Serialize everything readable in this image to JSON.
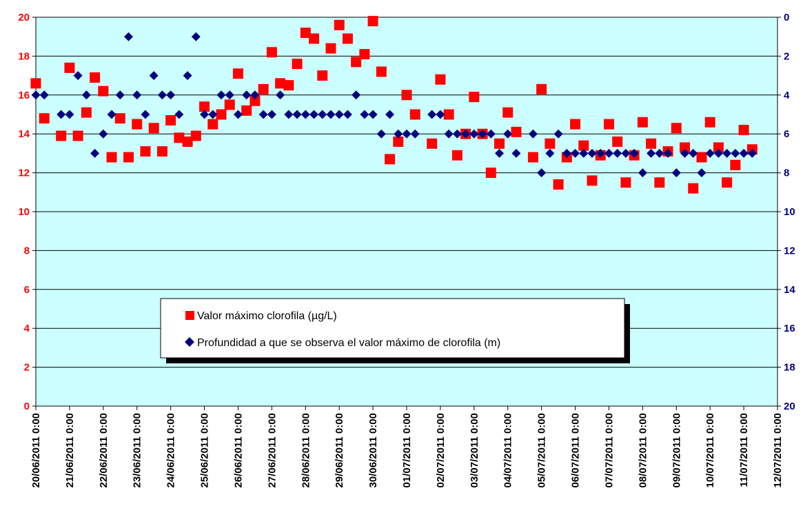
{
  "chart_data": {
    "type": "scatter",
    "title": "",
    "x_axis": {
      "type": "date",
      "min": "2011-06-20 00:00",
      "max": "2011-07-12 00:00",
      "tick_labels": [
        "20/06/2011 0:00",
        "21/06/2011 0:00",
        "22/06/2011 0:00",
        "23/06/2011 0:00",
        "24/06/2011 0:00",
        "25/06/2011 0:00",
        "26/06/2011 0:00",
        "27/06/2011 0:00",
        "28/06/2011 0:00",
        "29/06/2011 0:00",
        "30/06/2011 0:00",
        "01/07/2011 0:00",
        "02/07/2011 0:00",
        "03/07/2011 0:00",
        "04/07/2011 0:00",
        "05/07/2011 0:00",
        "06/07/2011 0:00",
        "07/07/2011 0:00",
        "08/07/2011 0:00",
        "09/07/2011 0:00",
        "10/07/2011 0:00",
        "11/07/2011 0:00",
        "12/07/2011 0:00"
      ]
    },
    "y_axis_left": {
      "min": 0,
      "max": 20,
      "tick_labels": [
        "0",
        "2",
        "4",
        "6",
        "8",
        "10",
        "12",
        "14",
        "16",
        "18",
        "20"
      ],
      "color": "#ff0000"
    },
    "y_axis_right": {
      "min": 0,
      "max": 20,
      "reversed": true,
      "tick_labels": [
        "0",
        "2",
        "4",
        "6",
        "8",
        "10",
        "12",
        "14",
        "16",
        "18",
        "20"
      ],
      "color": "#00007f"
    },
    "grid": "horizontal",
    "plot_background": "#ccffff",
    "legend": {
      "position": "bottom-center",
      "entries": [
        "Valor máximo clorofila (µg/L)",
        "Profundidad a que se observa el valor máximo de clorofila (m)"
      ]
    },
    "series": [
      {
        "name": "Valor máximo clorofila (µg/L)",
        "axis": "left",
        "marker": "square",
        "color": "#ff0000",
        "points": [
          {
            "x": "2011-06-20 00:00",
            "y": 16.6
          },
          {
            "x": "2011-06-20 06:00",
            "y": 14.8
          },
          {
            "x": "2011-06-20 18:00",
            "y": 13.9
          },
          {
            "x": "2011-06-21 00:00",
            "y": 17.4
          },
          {
            "x": "2011-06-21 06:00",
            "y": 13.9
          },
          {
            "x": "2011-06-21 12:00",
            "y": 15.1
          },
          {
            "x": "2011-06-21 18:00",
            "y": 16.9
          },
          {
            "x": "2011-06-22 00:00",
            "y": 16.2
          },
          {
            "x": "2011-06-22 06:00",
            "y": 12.8
          },
          {
            "x": "2011-06-22 12:00",
            "y": 14.8
          },
          {
            "x": "2011-06-22 18:00",
            "y": 12.8
          },
          {
            "x": "2011-06-23 00:00",
            "y": 14.5
          },
          {
            "x": "2011-06-23 06:00",
            "y": 13.1
          },
          {
            "x": "2011-06-23 12:00",
            "y": 14.3
          },
          {
            "x": "2011-06-23 18:00",
            "y": 13.1
          },
          {
            "x": "2011-06-24 00:00",
            "y": 14.7
          },
          {
            "x": "2011-06-24 06:00",
            "y": 13.8
          },
          {
            "x": "2011-06-24 12:00",
            "y": 13.6
          },
          {
            "x": "2011-06-24 18:00",
            "y": 13.9
          },
          {
            "x": "2011-06-25 00:00",
            "y": 15.4
          },
          {
            "x": "2011-06-25 06:00",
            "y": 14.5
          },
          {
            "x": "2011-06-25 12:00",
            "y": 15.0
          },
          {
            "x": "2011-06-25 18:00",
            "y": 15.5
          },
          {
            "x": "2011-06-26 00:00",
            "y": 17.1
          },
          {
            "x": "2011-06-26 06:00",
            "y": 15.2
          },
          {
            "x": "2011-06-26 12:00",
            "y": 15.7
          },
          {
            "x": "2011-06-26 18:00",
            "y": 16.3
          },
          {
            "x": "2011-06-27 00:00",
            "y": 18.2
          },
          {
            "x": "2011-06-27 06:00",
            "y": 16.6
          },
          {
            "x": "2011-06-27 12:00",
            "y": 16.5
          },
          {
            "x": "2011-06-27 18:00",
            "y": 17.6
          },
          {
            "x": "2011-06-28 00:00",
            "y": 19.2
          },
          {
            "x": "2011-06-28 06:00",
            "y": 18.9
          },
          {
            "x": "2011-06-28 12:00",
            "y": 17.0
          },
          {
            "x": "2011-06-28 18:00",
            "y": 18.4
          },
          {
            "x": "2011-06-29 00:00",
            "y": 19.6
          },
          {
            "x": "2011-06-29 06:00",
            "y": 18.9
          },
          {
            "x": "2011-06-29 12:00",
            "y": 17.7
          },
          {
            "x": "2011-06-29 18:00",
            "y": 18.1
          },
          {
            "x": "2011-06-30 00:00",
            "y": 19.8
          },
          {
            "x": "2011-06-30 06:00",
            "y": 17.2
          },
          {
            "x": "2011-06-30 12:00",
            "y": 12.7
          },
          {
            "x": "2011-06-30 18:00",
            "y": 13.6
          },
          {
            "x": "2011-07-01 00:00",
            "y": 16.0
          },
          {
            "x": "2011-07-01 06:00",
            "y": 15.0
          },
          {
            "x": "2011-07-01 18:00",
            "y": 13.5
          },
          {
            "x": "2011-07-02 00:00",
            "y": 16.8
          },
          {
            "x": "2011-07-02 06:00",
            "y": 15.0
          },
          {
            "x": "2011-07-02 12:00",
            "y": 12.9
          },
          {
            "x": "2011-07-02 18:00",
            "y": 14.0
          },
          {
            "x": "2011-07-03 00:00",
            "y": 15.9
          },
          {
            "x": "2011-07-03 06:00",
            "y": 14.0
          },
          {
            "x": "2011-07-03 12:00",
            "y": 12.0
          },
          {
            "x": "2011-07-03 18:00",
            "y": 13.5
          },
          {
            "x": "2011-07-04 00:00",
            "y": 15.1
          },
          {
            "x": "2011-07-04 06:00",
            "y": 14.1
          },
          {
            "x": "2011-07-04 18:00",
            "y": 12.8
          },
          {
            "x": "2011-07-05 00:00",
            "y": 16.3
          },
          {
            "x": "2011-07-05 06:00",
            "y": 13.5
          },
          {
            "x": "2011-07-05 12:00",
            "y": 11.4
          },
          {
            "x": "2011-07-05 18:00",
            "y": 12.8
          },
          {
            "x": "2011-07-06 00:00",
            "y": 14.5
          },
          {
            "x": "2011-07-06 06:00",
            "y": 13.4
          },
          {
            "x": "2011-07-06 12:00",
            "y": 11.6
          },
          {
            "x": "2011-07-06 18:00",
            "y": 12.9
          },
          {
            "x": "2011-07-07 00:00",
            "y": 14.5
          },
          {
            "x": "2011-07-07 06:00",
            "y": 13.6
          },
          {
            "x": "2011-07-07 12:00",
            "y": 11.5
          },
          {
            "x": "2011-07-07 18:00",
            "y": 12.9
          },
          {
            "x": "2011-07-08 00:00",
            "y": 14.6
          },
          {
            "x": "2011-07-08 06:00",
            "y": 13.5
          },
          {
            "x": "2011-07-08 12:00",
            "y": 11.5
          },
          {
            "x": "2011-07-08 18:00",
            "y": 13.1
          },
          {
            "x": "2011-07-09 00:00",
            "y": 14.3
          },
          {
            "x": "2011-07-09 06:00",
            "y": 13.3
          },
          {
            "x": "2011-07-09 12:00",
            "y": 11.2
          },
          {
            "x": "2011-07-09 18:00",
            "y": 12.8
          },
          {
            "x": "2011-07-10 00:00",
            "y": 14.6
          },
          {
            "x": "2011-07-10 06:00",
            "y": 13.3
          },
          {
            "x": "2011-07-10 12:00",
            "y": 11.5
          },
          {
            "x": "2011-07-10 18:00",
            "y": 12.4
          },
          {
            "x": "2011-07-11 00:00",
            "y": 14.2
          },
          {
            "x": "2011-07-11 06:00",
            "y": 13.2
          }
        ]
      },
      {
        "name": "Profundidad a que se observa el valor máximo de clorofila (m)",
        "axis": "right",
        "marker": "diamond",
        "color": "#00007f",
        "points": [
          {
            "x": "2011-06-20 00:00",
            "y": 4
          },
          {
            "x": "2011-06-20 06:00",
            "y": 4
          },
          {
            "x": "2011-06-20 18:00",
            "y": 5
          },
          {
            "x": "2011-06-21 00:00",
            "y": 5
          },
          {
            "x": "2011-06-21 06:00",
            "y": 3
          },
          {
            "x": "2011-06-21 12:00",
            "y": 4
          },
          {
            "x": "2011-06-21 18:00",
            "y": 7
          },
          {
            "x": "2011-06-22 00:00",
            "y": 6
          },
          {
            "x": "2011-06-22 06:00",
            "y": 5
          },
          {
            "x": "2011-06-22 12:00",
            "y": 4
          },
          {
            "x": "2011-06-22 18:00",
            "y": 1
          },
          {
            "x": "2011-06-23 00:00",
            "y": 4
          },
          {
            "x": "2011-06-23 06:00",
            "y": 5
          },
          {
            "x": "2011-06-23 12:00",
            "y": 3
          },
          {
            "x": "2011-06-23 18:00",
            "y": 4
          },
          {
            "x": "2011-06-24 00:00",
            "y": 4
          },
          {
            "x": "2011-06-24 06:00",
            "y": 5
          },
          {
            "x": "2011-06-24 12:00",
            "y": 3
          },
          {
            "x": "2011-06-24 18:00",
            "y": 1
          },
          {
            "x": "2011-06-25 00:00",
            "y": 5
          },
          {
            "x": "2011-06-25 06:00",
            "y": 5
          },
          {
            "x": "2011-06-25 12:00",
            "y": 4
          },
          {
            "x": "2011-06-25 18:00",
            "y": 4
          },
          {
            "x": "2011-06-26 00:00",
            "y": 5
          },
          {
            "x": "2011-06-26 06:00",
            "y": 4
          },
          {
            "x": "2011-06-26 12:00",
            "y": 4
          },
          {
            "x": "2011-06-26 18:00",
            "y": 5
          },
          {
            "x": "2011-06-27 00:00",
            "y": 5
          },
          {
            "x": "2011-06-27 06:00",
            "y": 4
          },
          {
            "x": "2011-06-27 12:00",
            "y": 5
          },
          {
            "x": "2011-06-27 18:00",
            "y": 5
          },
          {
            "x": "2011-06-28 00:00",
            "y": 5
          },
          {
            "x": "2011-06-28 06:00",
            "y": 5
          },
          {
            "x": "2011-06-28 12:00",
            "y": 5
          },
          {
            "x": "2011-06-28 18:00",
            "y": 5
          },
          {
            "x": "2011-06-29 00:00",
            "y": 5
          },
          {
            "x": "2011-06-29 06:00",
            "y": 5
          },
          {
            "x": "2011-06-29 12:00",
            "y": 4
          },
          {
            "x": "2011-06-29 18:00",
            "y": 5
          },
          {
            "x": "2011-06-30 00:00",
            "y": 5
          },
          {
            "x": "2011-06-30 06:00",
            "y": 6
          },
          {
            "x": "2011-06-30 12:00",
            "y": 5
          },
          {
            "x": "2011-06-30 18:00",
            "y": 6
          },
          {
            "x": "2011-07-01 00:00",
            "y": 6
          },
          {
            "x": "2011-07-01 06:00",
            "y": 6
          },
          {
            "x": "2011-07-01 18:00",
            "y": 5
          },
          {
            "x": "2011-07-02 00:00",
            "y": 5
          },
          {
            "x": "2011-07-02 06:00",
            "y": 6
          },
          {
            "x": "2011-07-02 12:00",
            "y": 6
          },
          {
            "x": "2011-07-02 18:00",
            "y": 6
          },
          {
            "x": "2011-07-03 00:00",
            "y": 6
          },
          {
            "x": "2011-07-03 06:00",
            "y": 6
          },
          {
            "x": "2011-07-03 12:00",
            "y": 6
          },
          {
            "x": "2011-07-03 18:00",
            "y": 7
          },
          {
            "x": "2011-07-04 00:00",
            "y": 6
          },
          {
            "x": "2011-07-04 06:00",
            "y": 7
          },
          {
            "x": "2011-07-04 18:00",
            "y": 6
          },
          {
            "x": "2011-07-05 00:00",
            "y": 8
          },
          {
            "x": "2011-07-05 06:00",
            "y": 7
          },
          {
            "x": "2011-07-05 12:00",
            "y": 6
          },
          {
            "x": "2011-07-05 18:00",
            "y": 7
          },
          {
            "x": "2011-07-06 00:00",
            "y": 7
          },
          {
            "x": "2011-07-06 06:00",
            "y": 7
          },
          {
            "x": "2011-07-06 12:00",
            "y": 7
          },
          {
            "x": "2011-07-06 18:00",
            "y": 7
          },
          {
            "x": "2011-07-07 00:00",
            "y": 7
          },
          {
            "x": "2011-07-07 06:00",
            "y": 7
          },
          {
            "x": "2011-07-07 12:00",
            "y": 7
          },
          {
            "x": "2011-07-07 18:00",
            "y": 7
          },
          {
            "x": "2011-07-08 00:00",
            "y": 8
          },
          {
            "x": "2011-07-08 06:00",
            "y": 7
          },
          {
            "x": "2011-07-08 12:00",
            "y": 7
          },
          {
            "x": "2011-07-08 18:00",
            "y": 7
          },
          {
            "x": "2011-07-09 00:00",
            "y": 8
          },
          {
            "x": "2011-07-09 06:00",
            "y": 7
          },
          {
            "x": "2011-07-09 12:00",
            "y": 7
          },
          {
            "x": "2011-07-09 18:00",
            "y": 8
          },
          {
            "x": "2011-07-10 00:00",
            "y": 7
          },
          {
            "x": "2011-07-10 06:00",
            "y": 7
          },
          {
            "x": "2011-07-10 12:00",
            "y": 7
          },
          {
            "x": "2011-07-10 18:00",
            "y": 7
          },
          {
            "x": "2011-07-11 00:00",
            "y": 7
          },
          {
            "x": "2011-07-11 06:00",
            "y": 7
          }
        ]
      }
    ]
  }
}
